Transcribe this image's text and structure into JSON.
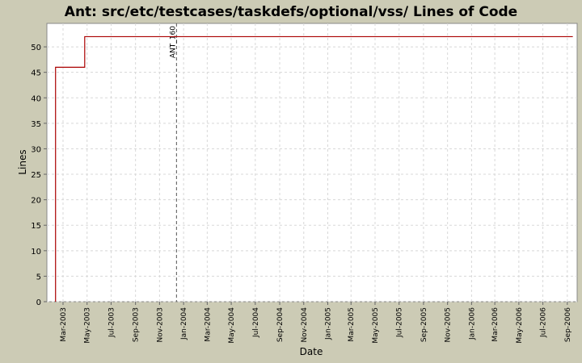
{
  "chart_data": {
    "type": "line",
    "title": "Ant: src/etc/testcases/taskdefs/optional/vss/ Lines of Code",
    "xlabel": "Date",
    "ylabel": "Lines",
    "x_range": [
      "2003-01-19",
      "2006-09-26"
    ],
    "ylim": [
      0,
      54.6
    ],
    "yticks": [
      0,
      5,
      10,
      15,
      20,
      25,
      30,
      35,
      40,
      45,
      50
    ],
    "xticks": [
      {
        "date": "2003-03-01",
        "label": "Mar-2003"
      },
      {
        "date": "2003-05-01",
        "label": "May-2003"
      },
      {
        "date": "2003-07-01",
        "label": "Jul-2003"
      },
      {
        "date": "2003-09-01",
        "label": "Sep-2003"
      },
      {
        "date": "2003-11-01",
        "label": "Nov-2003"
      },
      {
        "date": "2004-01-01",
        "label": "Jan-2004"
      },
      {
        "date": "2004-03-01",
        "label": "Mar-2004"
      },
      {
        "date": "2004-05-01",
        "label": "May-2004"
      },
      {
        "date": "2004-07-01",
        "label": "Jul-2004"
      },
      {
        "date": "2004-09-01",
        "label": "Sep-2004"
      },
      {
        "date": "2004-11-01",
        "label": "Nov-2004"
      },
      {
        "date": "2005-01-01",
        "label": "Jan-2005"
      },
      {
        "date": "2005-03-01",
        "label": "Mar-2005"
      },
      {
        "date": "2005-05-01",
        "label": "May-2005"
      },
      {
        "date": "2005-07-01",
        "label": "Jul-2005"
      },
      {
        "date": "2005-09-01",
        "label": "Sep-2005"
      },
      {
        "date": "2005-11-01",
        "label": "Nov-2005"
      },
      {
        "date": "2006-01-01",
        "label": "Jan-2006"
      },
      {
        "date": "2006-03-01",
        "label": "Mar-2006"
      },
      {
        "date": "2006-05-01",
        "label": "May-2006"
      },
      {
        "date": "2006-07-01",
        "label": "Jul-2006"
      },
      {
        "date": "2006-09-01",
        "label": "Sep-2006"
      }
    ],
    "series": [
      {
        "step": true,
        "color": "#aa0000",
        "points": [
          {
            "x": "2003-02-10",
            "y": 0
          },
          {
            "x": "2003-02-10",
            "y": 46
          },
          {
            "x": "2003-04-25",
            "y": 46
          },
          {
            "x": "2003-04-25",
            "y": 52
          },
          {
            "x": "2006-09-15",
            "y": 52
          }
        ]
      }
    ],
    "annotations": [
      {
        "x": "2003-12-14",
        "label": "ANT_160",
        "style": "dashed"
      }
    ],
    "grid": true,
    "legend": "none"
  }
}
